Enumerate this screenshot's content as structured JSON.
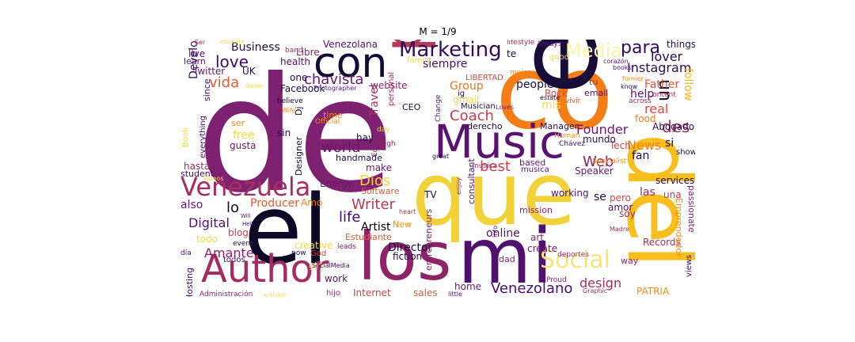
{
  "title": "M = 1/9",
  "words": [
    {
      "text": "de",
      "color": "#7e2170"
    },
    {
      "text": "co",
      "color": "#f47d15"
    },
    {
      "text": "que",
      "color": "#f2d23a"
    },
    {
      "text": "el",
      "color": "#0c0826"
    },
    {
      "text": "en",
      "color": "#170c3a"
    },
    {
      "text": "del",
      "color": "#f7be1d"
    },
    {
      "text": "los",
      "color": "#8d2369"
    },
    {
      "text": "mi",
      "color": "#50106e"
    },
    {
      "text": "por",
      "color": "#b73b56"
    },
    {
      "text": "Music",
      "color": "#5a1370"
    },
    {
      "text": "con",
      "color": "#140b34"
    },
    {
      "text": "Author",
      "color": "#a52c60"
    },
    {
      "text": "Venezuela",
      "color": "#a72d5f"
    },
    {
      "text": "Social",
      "color": "#f7e47a"
    },
    {
      "text": "Marketing",
      "color": "#320a5e"
    },
    {
      "text": "Media",
      "color": "#fbf5a8"
    },
    {
      "text": "Venezolano",
      "color": "#4a0c6b"
    },
    {
      "text": "Instagram",
      "color": "#2d0b55"
    },
    {
      "text": "love",
      "color": "#3d0965"
    },
    {
      "text": "para",
      "color": "#320a5e"
    },
    {
      "text": "lover",
      "color": "#240c4f"
    },
    {
      "text": "Coach",
      "color": "#c43c4e"
    },
    {
      "text": "chavista",
      "color": "#6b186e"
    },
    {
      "text": "vida",
      "color": "#e45a31"
    },
    {
      "text": "best",
      "color": "#cb4149"
    },
    {
      "text": "Writer",
      "color": "#bc3754"
    },
    {
      "text": "Dios",
      "color": "#f9d13a"
    },
    {
      "text": "world",
      "color": "#6a176e"
    },
    {
      "text": "Web",
      "color": "#8a226a"
    },
    {
      "text": "News",
      "color": "#f57d15"
    },
    {
      "text": "Founder",
      "color": "#6b186e"
    },
    {
      "text": "life",
      "color": "#420a68"
    },
    {
      "text": "Amante",
      "color": "#8a226a"
    },
    {
      "text": "Digital",
      "color": "#56106e"
    },
    {
      "text": "design",
      "color": "#a32c61"
    },
    {
      "text": "un",
      "color": "#120a32"
    },
    {
      "text": "des",
      "color": "#9f2a63"
    },
    {
      "text": "fan",
      "color": "#1b0c41"
    },
    {
      "text": "real",
      "color": "#d74b3f"
    },
    {
      "text": "Father",
      "color": "#e05536"
    },
    {
      "text": "help",
      "color": "#5c126e"
    },
    {
      "text": "follow",
      "color": "#fbb61a"
    },
    {
      "text": "Development",
      "color": "#3b0964"
    },
    {
      "text": "Artist",
      "color": "#000004"
    },
    {
      "text": "online",
      "color": "#56106e"
    },
    {
      "text": "Director",
      "color": "#1b0c41"
    },
    {
      "text": "Producer",
      "color": "#e25734"
    },
    {
      "text": "Business",
      "color": "#1b0c41"
    },
    {
      "text": "siempre",
      "color": "#4a0c6b"
    },
    {
      "text": "Group",
      "color": "#f1731d"
    },
    {
      "text": "Travel",
      "color": "#b1325a"
    },
    {
      "text": "website",
      "color": "#8d2369"
    },
    {
      "text": "people",
      "color": "#1b0c41"
    },
    {
      "text": "Rock",
      "color": "#d44842"
    },
    {
      "text": "mis",
      "color": "#f6d746"
    },
    {
      "text": "free",
      "color": "#f6d746"
    },
    {
      "text": "lo",
      "color": "#0c0826"
    },
    {
      "text": "also",
      "color": "#6b186e"
    },
    {
      "text": "Energy",
      "color": "#6b186e"
    },
    {
      "text": "Amo",
      "color": "#f57d15"
    },
    {
      "text": "las",
      "color": "#a32c61"
    },
    {
      "text": "una",
      "color": "#bc3754"
    },
    {
      "text": "se",
      "color": "#1b0c41"
    },
    {
      "text": "pero",
      "color": "#d44842"
    },
    {
      "text": "soy",
      "color": "#a32c61"
    },
    {
      "text": "Abogado",
      "color": "#240c4f"
    },
    {
      "text": "Tech",
      "color": "#d44842"
    },
    {
      "text": "mundo",
      "color": "#240c4f"
    },
    {
      "text": "si",
      "color": "#0c0826"
    },
    {
      "text": "services",
      "color": "#1b0c41"
    },
    {
      "text": "amor",
      "color": "#56106e"
    },
    {
      "text": "Records",
      "color": "#a32c61"
    },
    {
      "text": "art",
      "color": "#8a226a"
    },
    {
      "text": "create",
      "color": "#6b186e"
    },
    {
      "text": "home",
      "color": "#6b186e"
    },
    {
      "text": "sales",
      "color": "#e25734"
    },
    {
      "text": "Internet",
      "color": "#cb4149"
    },
    {
      "text": "PATRIA",
      "color": "#f98c0a"
    },
    {
      "text": "work",
      "color": "#56106e"
    },
    {
      "text": "fiction",
      "color": "#240c4f"
    },
    {
      "text": "creative",
      "color": "#f6d746"
    },
    {
      "text": "todos",
      "color": "#420a68"
    },
    {
      "text": "Hosting",
      "color": "#420a68"
    },
    {
      "text": "blog",
      "color": "#cb4149"
    },
    {
      "text": "todo",
      "color": "#f6d746"
    },
    {
      "text": "God",
      "color": "#d44842"
    },
    {
      "text": "Twitter",
      "color": "#6b186e"
    },
    {
      "text": "UK",
      "color": "#1b0c41"
    },
    {
      "text": "live",
      "color": "#56106e"
    },
    {
      "text": "learn",
      "color": "#56106e"
    },
    {
      "text": "health",
      "color": "#56106e"
    },
    {
      "text": "Venezolana",
      "color": "#56106e"
    },
    {
      "text": "Libre",
      "color": "#8a226a"
    },
    {
      "text": "Facebook",
      "color": "#1b0c41"
    },
    {
      "text": "one",
      "color": "#1b0c41"
    },
    {
      "text": "ser",
      "color": "#f98c0a"
    },
    {
      "text": "sin",
      "color": "#240c4f"
    },
    {
      "text": "gusta",
      "color": "#6b186e"
    },
    {
      "text": "hay",
      "color": "#1b0c41"
    },
    {
      "text": "CEO",
      "color": "#1b0c41"
    },
    {
      "text": "make",
      "color": "#6b186e"
    },
    {
      "text": "handmade",
      "color": "#1b0c41"
    },
    {
      "text": "hasta",
      "color": "#a32c61"
    },
    {
      "text": "student",
      "color": "#420a68"
    },
    {
      "text": "Software",
      "color": "#e25734"
    },
    {
      "text": "TV",
      "color": "#1b0c41"
    },
    {
      "text": "consultant",
      "color": "#56106e"
    },
    {
      "text": "working",
      "color": "#56106e"
    },
    {
      "text": "Speaker",
      "color": "#6b186e"
    },
    {
      "text": "Manager",
      "color": "#240c4f"
    },
    {
      "text": "email",
      "color": "#56106e"
    },
    {
      "text": "food",
      "color": "#f57d15"
    },
    {
      "text": "Estudiante",
      "color": "#e25734"
    },
    {
      "text": "New",
      "color": "#f98c0a"
    },
    {
      "text": "entrepreneurs",
      "color": "#8a226a"
    },
    {
      "text": "dad",
      "color": "#8a226a"
    },
    {
      "text": "mission",
      "color": "#8a226a"
    },
    {
      "text": "musica",
      "color": "#56106e"
    },
    {
      "text": "based",
      "color": "#6b186e"
    },
    {
      "text": "girl",
      "color": "#f6d746"
    },
    {
      "text": "hijo",
      "color": "#a32c61"
    },
    {
      "text": "leads",
      "color": "#8a226a"
    },
    {
      "text": "events",
      "color": "#1b0c41"
    },
    {
      "text": "Dj",
      "color": "#1b0c41"
    },
    {
      "text": "Designer",
      "color": "#1b0c41"
    },
    {
      "text": "time",
      "color": "#f98c0a"
    },
    {
      "text": "Official",
      "color": "#f98c0a"
    },
    {
      "text": "day",
      "color": "#f6d746"
    },
    {
      "text": "high",
      "color": "#8a226a"
    },
    {
      "text": "Editor",
      "color": "#8a226a"
    },
    {
      "text": "since",
      "color": "#420a68"
    },
    {
      "text": "everything",
      "color": "#420a68"
    },
    {
      "text": "gmail",
      "color": "#f6d746"
    },
    {
      "text": "ig",
      "color": "#1b0c41"
    },
    {
      "text": "Musician",
      "color": "#1b0c41"
    },
    {
      "text": "derecho",
      "color": "#1b0c41"
    },
    {
      "text": "Change",
      "color": "#56106e"
    },
    {
      "text": "personal",
      "color": "#a32c61"
    },
    {
      "text": "Photographer",
      "color": "#56106e"
    },
    {
      "text": "believe",
      "color": "#1b0c41"
    },
    {
      "text": "Wife",
      "color": "#f98c0a"
    },
    {
      "text": "now",
      "color": "#1b0c41"
    },
    {
      "text": "Book",
      "color": "#f6d746"
    },
    {
      "text": "Videos",
      "color": "#f6d746"
    },
    {
      "text": "día",
      "color": "#420a68"
    },
    {
      "text": "Administración",
      "color": "#8a226a"
    },
    {
      "text": "activist",
      "color": "#f6d746"
    },
    {
      "text": "SocialMedia",
      "color": "#420a68"
    },
    {
      "text": "little",
      "color": "#56106e"
    },
    {
      "text": "Graphic",
      "color": "#a32c61"
    },
    {
      "text": "Proud",
      "color": "#8a226a"
    },
    {
      "text": "views",
      "color": "#420a68"
    },
    {
      "text": "Emprendedor",
      "color": "#f98c0a"
    },
    {
      "text": "passionate",
      "color": "#8a226a"
    },
    {
      "text": "way",
      "color": "#8a226a"
    },
    {
      "text": "Madre",
      "color": "#a32c61"
    },
    {
      "text": "deportes",
      "color": "#a32c61"
    },
    {
      "text": "Specialist",
      "color": "#f98c0a"
    },
    {
      "text": "show",
      "color": "#1b0c41"
    },
    {
      "text": "things",
      "color": "#1b0c41"
    },
    {
      "text": "Always",
      "color": "#56106e"
    },
    {
      "text": "lifestyle",
      "color": "#a32c61"
    },
    {
      "text": "corazón",
      "color": "#56106e"
    },
    {
      "text": "books",
      "color": "#56106e"
    },
    {
      "text": "former",
      "color": "#f98c0a"
    },
    {
      "text": "know",
      "color": "#1b0c41"
    },
    {
      "text": "Content",
      "color": "#a32c61"
    },
    {
      "text": "across",
      "color": "#a32c61"
    },
    {
      "text": "vivir",
      "color": "#e25734"
    },
    {
      "text": "Loves",
      "color": "#8a226a"
    },
    {
      "text": "estate",
      "color": "#1b0c41"
    },
    {
      "text": "tu",
      "color": "#a32c61"
    },
    {
      "text": "good",
      "color": "#f6d746"
    },
    {
      "text": "mejor",
      "color": "#f98c0a"
    },
    {
      "text": "LIBERTAD",
      "color": "#d44842"
    },
    {
      "text": "family",
      "color": "#f6d746"
    },
    {
      "text": "te",
      "color": "#1b0c41"
    },
    {
      "text": "band",
      "color": "#a32c61"
    },
    {
      "text": "Human",
      "color": "#f98c0a"
    },
    {
      "text": "Chávez",
      "color": "#420a68"
    },
    {
      "text": "great",
      "color": "#1b0c41"
    },
    {
      "text": "musica",
      "color": "#a32c61"
    },
    {
      "text": "info",
      "color": "#56106e"
    },
    {
      "text": "enjoy",
      "color": "#a32c61"
    },
    {
      "text": "heart",
      "color": "#a32c61"
    },
    {
      "text": "Owner",
      "color": "#f6d746"
    },
    {
      "text": "Will",
      "color": "#56106e"
    },
    {
      "text": "Hell",
      "color": "#420a68"
    },
    {
      "text": "Ser",
      "color": "#a32c61"
    },
    {
      "text": "estimate",
      "color": "#f6d746"
    }
  ]
}
